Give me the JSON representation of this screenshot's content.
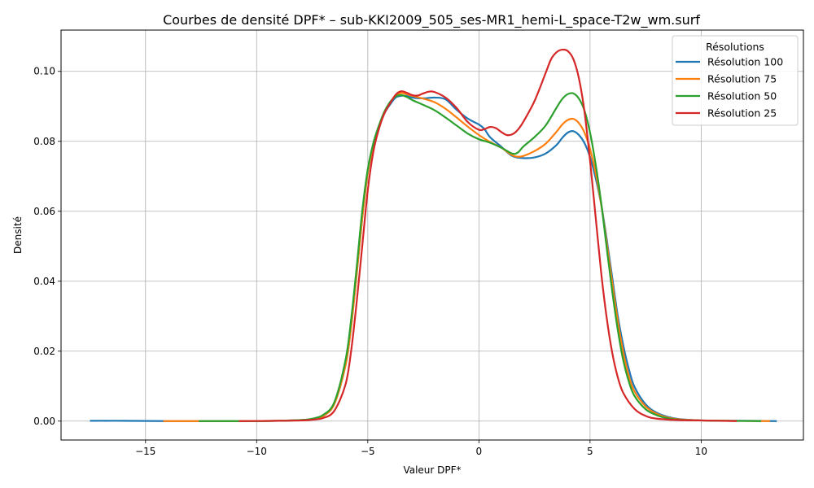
{
  "chart_data": {
    "type": "line",
    "title": "Courbes de densité DPF* – sub-KKI2009_505_ses-MR1_hemi-L_space-T2w_wm.surf",
    "xlabel": "Valeur DPF*",
    "ylabel": "Densité",
    "xlim": [
      -18.8,
      14.6
    ],
    "ylim": [
      -0.0054,
      0.1118
    ],
    "x_ticks": [
      -15,
      -10,
      -5,
      0,
      5,
      10
    ],
    "x_tick_labels": [
      "−15",
      "−10",
      "−5",
      "0",
      "5",
      "10"
    ],
    "y_ticks": [
      0.0,
      0.02,
      0.04,
      0.06,
      0.08,
      0.1
    ],
    "y_tick_labels": [
      "0.00",
      "0.02",
      "0.04",
      "0.06",
      "0.08",
      "0.10"
    ],
    "grid": true,
    "legend": {
      "title": "Résolutions",
      "placement": "top-right"
    },
    "series": [
      {
        "name": "Résolution 100",
        "color": "#1f77b4",
        "points": [
          [
            -17.5,
            0.0001
          ],
          [
            -16,
            0.0001
          ],
          [
            -14,
            0.0
          ],
          [
            -12,
            0.0
          ],
          [
            -10,
            0.0
          ],
          [
            -9,
            0.0001
          ],
          [
            -8,
            0.0003
          ],
          [
            -7.5,
            0.0006
          ],
          [
            -7,
            0.0015
          ],
          [
            -6.5,
            0.005
          ],
          [
            -6,
            0.016
          ],
          [
            -5.75,
            0.027
          ],
          [
            -5.5,
            0.042
          ],
          [
            -5.25,
            0.058
          ],
          [
            -5,
            0.071
          ],
          [
            -4.75,
            0.079
          ],
          [
            -4.5,
            0.084
          ],
          [
            -4.25,
            0.088
          ],
          [
            -4,
            0.0905
          ],
          [
            -3.75,
            0.0925
          ],
          [
            -3.5,
            0.093
          ],
          [
            -3.25,
            0.093
          ],
          [
            -3,
            0.0925
          ],
          [
            -2.5,
            0.0923
          ],
          [
            -2,
            0.0925
          ],
          [
            -1.5,
            0.092
          ],
          [
            -1,
            0.089
          ],
          [
            -0.5,
            0.0865
          ],
          [
            0,
            0.0848
          ],
          [
            0.25,
            0.0835
          ],
          [
            0.5,
            0.0812
          ],
          [
            1,
            0.0785
          ],
          [
            1.5,
            0.0758
          ],
          [
            2,
            0.0752
          ],
          [
            2.5,
            0.0754
          ],
          [
            3,
            0.0765
          ],
          [
            3.5,
            0.079
          ],
          [
            3.75,
            0.081
          ],
          [
            4,
            0.0825
          ],
          [
            4.25,
            0.0829
          ],
          [
            4.5,
            0.0818
          ],
          [
            4.75,
            0.0795
          ],
          [
            5,
            0.0755
          ],
          [
            5.25,
            0.0695
          ],
          [
            5.5,
            0.062
          ],
          [
            5.75,
            0.052
          ],
          [
            6,
            0.041
          ],
          [
            6.25,
            0.03
          ],
          [
            6.5,
            0.0215
          ],
          [
            6.75,
            0.0148
          ],
          [
            7,
            0.0098
          ],
          [
            7.5,
            0.0048
          ],
          [
            8,
            0.0024
          ],
          [
            8.5,
            0.0012
          ],
          [
            9,
            0.0006
          ],
          [
            10,
            0.0002
          ],
          [
            11,
            0.0001
          ],
          [
            12,
            0.0001
          ],
          [
            13.4,
            0.0
          ]
        ]
      },
      {
        "name": "Résolution 75",
        "color": "#ff7f0e",
        "points": [
          [
            -14.2,
            0.0
          ],
          [
            -12,
            0.0
          ],
          [
            -10,
            0.0
          ],
          [
            -9,
            0.0001
          ],
          [
            -8,
            0.0003
          ],
          [
            -7.5,
            0.0006
          ],
          [
            -7,
            0.0015
          ],
          [
            -6.5,
            0.005
          ],
          [
            -6,
            0.016
          ],
          [
            -5.75,
            0.027
          ],
          [
            -5.5,
            0.042
          ],
          [
            -5.25,
            0.058
          ],
          [
            -5,
            0.071
          ],
          [
            -4.75,
            0.079
          ],
          [
            -4.5,
            0.084
          ],
          [
            -4.25,
            0.0885
          ],
          [
            -4,
            0.091
          ],
          [
            -3.75,
            0.093
          ],
          [
            -3.5,
            0.0938
          ],
          [
            -3.25,
            0.0935
          ],
          [
            -3,
            0.093
          ],
          [
            -2.5,
            0.0922
          ],
          [
            -2,
            0.0912
          ],
          [
            -1.5,
            0.0893
          ],
          [
            -1,
            0.0868
          ],
          [
            -0.5,
            0.0842
          ],
          [
            0,
            0.0818
          ],
          [
            0.5,
            0.0798
          ],
          [
            1,
            0.0782
          ],
          [
            1.5,
            0.076
          ],
          [
            1.75,
            0.0756
          ],
          [
            2,
            0.0758
          ],
          [
            2.5,
            0.0772
          ],
          [
            3,
            0.0793
          ],
          [
            3.5,
            0.0828
          ],
          [
            3.75,
            0.0848
          ],
          [
            4,
            0.0861
          ],
          [
            4.25,
            0.0864
          ],
          [
            4.5,
            0.0852
          ],
          [
            4.75,
            0.0825
          ],
          [
            5,
            0.0778
          ],
          [
            5.25,
            0.071
          ],
          [
            5.5,
            0.062
          ],
          [
            5.75,
            0.051
          ],
          [
            6,
            0.0395
          ],
          [
            6.25,
            0.0285
          ],
          [
            6.5,
            0.0195
          ],
          [
            6.75,
            0.0128
          ],
          [
            7,
            0.0085
          ],
          [
            7.5,
            0.0042
          ],
          [
            8,
            0.0021
          ],
          [
            8.5,
            0.001
          ],
          [
            9,
            0.0005
          ],
          [
            10,
            0.0002
          ],
          [
            11,
            0.0001
          ],
          [
            13.1,
            0.0
          ]
        ]
      },
      {
        "name": "Résolution 50",
        "color": "#2ca02c",
        "points": [
          [
            -12.6,
            0.0
          ],
          [
            -11,
            0.0
          ],
          [
            -10,
            0.0
          ],
          [
            -9,
            0.0001
          ],
          [
            -8,
            0.0003
          ],
          [
            -7.5,
            0.0007
          ],
          [
            -7,
            0.0018
          ],
          [
            -6.5,
            0.0055
          ],
          [
            -6,
            0.0175
          ],
          [
            -5.75,
            0.029
          ],
          [
            -5.5,
            0.044
          ],
          [
            -5.25,
            0.06
          ],
          [
            -5,
            0.072
          ],
          [
            -4.75,
            0.0795
          ],
          [
            -4.5,
            0.0845
          ],
          [
            -4.25,
            0.0885
          ],
          [
            -4,
            0.0912
          ],
          [
            -3.75,
            0.0928
          ],
          [
            -3.5,
            0.0932
          ],
          [
            -3.25,
            0.0927
          ],
          [
            -3,
            0.0918
          ],
          [
            -2.5,
            0.0904
          ],
          [
            -2,
            0.0889
          ],
          [
            -1.5,
            0.0868
          ],
          [
            -1,
            0.0845
          ],
          [
            -0.5,
            0.0822
          ],
          [
            0,
            0.0806
          ],
          [
            0.5,
            0.0796
          ],
          [
            1,
            0.0782
          ],
          [
            1.5,
            0.0765
          ],
          [
            1.75,
            0.0768
          ],
          [
            2,
            0.0785
          ],
          [
            2.5,
            0.0812
          ],
          [
            3,
            0.0845
          ],
          [
            3.5,
            0.0897
          ],
          [
            3.75,
            0.0921
          ],
          [
            4,
            0.0935
          ],
          [
            4.25,
            0.0937
          ],
          [
            4.5,
            0.0922
          ],
          [
            4.75,
            0.0888
          ],
          [
            5,
            0.0825
          ],
          [
            5.25,
            0.0735
          ],
          [
            5.5,
            0.0625
          ],
          [
            5.75,
            0.0495
          ],
          [
            6,
            0.037
          ],
          [
            6.25,
            0.026
          ],
          [
            6.5,
            0.0172
          ],
          [
            6.75,
            0.0112
          ],
          [
            7,
            0.0072
          ],
          [
            7.5,
            0.0034
          ],
          [
            8,
            0.0017
          ],
          [
            8.5,
            0.0008
          ],
          [
            9,
            0.0004
          ],
          [
            10,
            0.0002
          ],
          [
            11,
            0.0001
          ],
          [
            12.7,
            0.0
          ]
        ]
      },
      {
        "name": "Résolution 25",
        "color": "#d62728",
        "points": [
          [
            -10.8,
            0.0
          ],
          [
            -9,
            0.0001
          ],
          [
            -8,
            0.0002
          ],
          [
            -7.5,
            0.0004
          ],
          [
            -7,
            0.0009
          ],
          [
            -6.5,
            0.003
          ],
          [
            -6,
            0.0105
          ],
          [
            -5.75,
            0.02
          ],
          [
            -5.5,
            0.034
          ],
          [
            -5.25,
            0.05
          ],
          [
            -5,
            0.066
          ],
          [
            -4.75,
            0.077
          ],
          [
            -4.5,
            0.0835
          ],
          [
            -4.25,
            0.088
          ],
          [
            -4,
            0.0908
          ],
          [
            -3.75,
            0.0933
          ],
          [
            -3.5,
            0.0943
          ],
          [
            -3.25,
            0.0939
          ],
          [
            -3,
            0.0932
          ],
          [
            -2.75,
            0.0931
          ],
          [
            -2.5,
            0.0937
          ],
          [
            -2.25,
            0.0942
          ],
          [
            -2,
            0.0941
          ],
          [
            -1.5,
            0.0925
          ],
          [
            -1,
            0.0895
          ],
          [
            -0.5,
            0.0855
          ],
          [
            0,
            0.0833
          ],
          [
            0.25,
            0.0835
          ],
          [
            0.5,
            0.0841
          ],
          [
            0.75,
            0.0838
          ],
          [
            1,
            0.0827
          ],
          [
            1.25,
            0.0818
          ],
          [
            1.5,
            0.082
          ],
          [
            1.75,
            0.0833
          ],
          [
            2,
            0.0856
          ],
          [
            2.5,
            0.0915
          ],
          [
            3,
            0.0995
          ],
          [
            3.25,
            0.1035
          ],
          [
            3.5,
            0.1055
          ],
          [
            3.75,
            0.1062
          ],
          [
            4,
            0.1058
          ],
          [
            4.25,
            0.1035
          ],
          [
            4.5,
            0.098
          ],
          [
            4.75,
            0.0885
          ],
          [
            5,
            0.0745
          ],
          [
            5.25,
            0.0585
          ],
          [
            5.5,
            0.0425
          ],
          [
            5.75,
            0.0295
          ],
          [
            6,
            0.0195
          ],
          [
            6.25,
            0.0125
          ],
          [
            6.5,
            0.008
          ],
          [
            7,
            0.0035
          ],
          [
            7.5,
            0.0015
          ],
          [
            8,
            0.0007
          ],
          [
            9,
            0.0003
          ],
          [
            10,
            0.0002
          ],
          [
            11.6,
            0.0
          ]
        ]
      }
    ]
  }
}
